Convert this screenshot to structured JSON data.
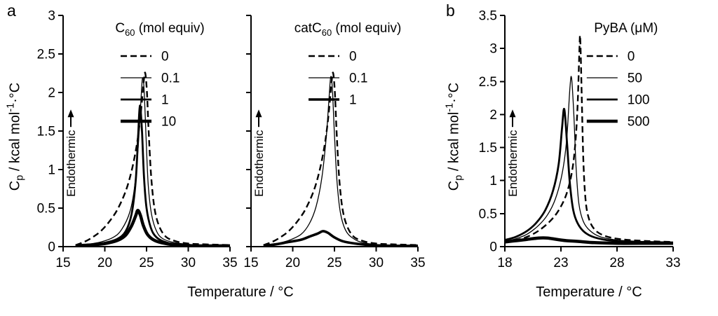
{
  "panels": {
    "a": {
      "label": "a",
      "xlabel": "Temperature / °C"
    },
    "b": {
      "label": "b",
      "xlabel": "Temperature / °C"
    }
  },
  "ylabel": {
    "pre": "C",
    "sub": "p",
    "mid": " / kcal mol",
    "sup": "-1",
    "post": "·°C",
    "plain": "Cp / kcal mol⁻¹·°C"
  },
  "annotation": {
    "text": "Endothermic",
    "arrow": "up"
  },
  "colors": {
    "ink": "#000000",
    "background": "#ffffff"
  },
  "chart_data": [
    {
      "type": "line",
      "panel": "a",
      "title": "C₆₀ (mol equiv)",
      "title_segments": [
        {
          "t": "C"
        },
        {
          "t": "60",
          "sub": true
        },
        {
          "t": " (mol equiv)"
        }
      ],
      "xlabel": "Temperature / °C",
      "ylabel": "Cp / kcal mol⁻¹·°C",
      "xlim": [
        15,
        35
      ],
      "ylim": [
        0,
        3
      ],
      "xticks": [
        15,
        20,
        25,
        30,
        35
      ],
      "xtick_labels": [
        "15",
        "20",
        "25",
        "30",
        "35"
      ],
      "yticks": [
        0,
        0.5,
        1,
        1.5,
        2,
        2.5,
        3
      ],
      "ytick_labels": [
        "0",
        "0.5",
        "1",
        "1.5",
        "2",
        "2.5",
        "3"
      ],
      "grid": false,
      "legend_pos": "top-center",
      "legend_frac": 0.58,
      "annotation": "Endothermic",
      "series": [
        {
          "name": "0",
          "dash": true,
          "width": 2.4,
          "points": [
            [
              16.5,
              0.02
            ],
            [
              17.5,
              0.06
            ],
            [
              18.5,
              0.12
            ],
            [
              19.5,
              0.2
            ],
            [
              20.5,
              0.32
            ],
            [
              21.5,
              0.48
            ],
            [
              22.5,
              0.72
            ],
            [
              23.2,
              0.98
            ],
            [
              23.8,
              1.3
            ],
            [
              24.2,
              1.62
            ],
            [
              24.5,
              1.95
            ],
            [
              24.7,
              2.18
            ],
            [
              24.85,
              2.25
            ],
            [
              25.05,
              2.0
            ],
            [
              25.25,
              1.5
            ],
            [
              25.55,
              0.92
            ],
            [
              25.95,
              0.5
            ],
            [
              26.5,
              0.27
            ],
            [
              27.3,
              0.13
            ],
            [
              28.5,
              0.07
            ],
            [
              30,
              0.04
            ],
            [
              32,
              0.03
            ],
            [
              35,
              0.02
            ]
          ]
        },
        {
          "name": "0.1",
          "dash": false,
          "width": 1.3,
          "points": [
            [
              16.5,
              0.01
            ],
            [
              18,
              0.03
            ],
            [
              19.5,
              0.06
            ],
            [
              21,
              0.12
            ],
            [
              22,
              0.22
            ],
            [
              23,
              0.45
            ],
            [
              23.6,
              0.8
            ],
            [
              24,
              1.3
            ],
            [
              24.3,
              1.85
            ],
            [
              24.5,
              2.18
            ],
            [
              24.7,
              2.05
            ],
            [
              24.95,
              1.4
            ],
            [
              25.2,
              0.8
            ],
            [
              25.6,
              0.42
            ],
            [
              26.2,
              0.2
            ],
            [
              27,
              0.1
            ],
            [
              28.5,
              0.05
            ],
            [
              31,
              0.02
            ],
            [
              35,
              0.01
            ]
          ]
        },
        {
          "name": "1",
          "dash": false,
          "width": 2.8,
          "points": [
            [
              16.5,
              0.01
            ],
            [
              18,
              0.02
            ],
            [
              20,
              0.05
            ],
            [
              21.5,
              0.1
            ],
            [
              22.5,
              0.2
            ],
            [
              23.2,
              0.42
            ],
            [
              23.7,
              0.85
            ],
            [
              24,
              1.45
            ],
            [
              24.2,
              1.83
            ],
            [
              24.45,
              1.5
            ],
            [
              24.7,
              0.9
            ],
            [
              25,
              0.5
            ],
            [
              25.5,
              0.25
            ],
            [
              26.2,
              0.12
            ],
            [
              27.5,
              0.05
            ],
            [
              29,
              0.03
            ],
            [
              32,
              0.01
            ],
            [
              35,
              0.01
            ]
          ]
        },
        {
          "name": "10",
          "dash": false,
          "width": 4.5,
          "points": [
            [
              16.5,
              0.01
            ],
            [
              18,
              0.02
            ],
            [
              20,
              0.04
            ],
            [
              21.5,
              0.08
            ],
            [
              22.5,
              0.15
            ],
            [
              23.2,
              0.27
            ],
            [
              23.7,
              0.4
            ],
            [
              23.95,
              0.47
            ],
            [
              24.25,
              0.41
            ],
            [
              24.6,
              0.28
            ],
            [
              25.1,
              0.16
            ],
            [
              25.8,
              0.09
            ],
            [
              26.8,
              0.05
            ],
            [
              28.5,
              0.02
            ],
            [
              31,
              0.01
            ],
            [
              35,
              0.01
            ]
          ]
        }
      ]
    },
    {
      "type": "line",
      "panel": "a",
      "title": "catC₆₀ (mol equiv)",
      "title_segments": [
        {
          "t": "catC"
        },
        {
          "t": "60",
          "sub": true
        },
        {
          "t": " (mol equiv)"
        }
      ],
      "xlabel": "Temperature / °C",
      "ylabel": "Cp / kcal mol⁻¹·°C",
      "xlim": [
        15,
        35
      ],
      "ylim": [
        0,
        3
      ],
      "xticks": [
        15,
        20,
        25,
        30,
        35
      ],
      "xtick_labels": [
        "15",
        "20",
        "25",
        "30",
        "35"
      ],
      "yticks": [
        0,
        0.5,
        1,
        1.5,
        2,
        2.5,
        3
      ],
      "ytick_labels": [
        "0",
        "0.5",
        "1",
        "1.5",
        "2",
        "2.5",
        "3"
      ],
      "grid": false,
      "legend_pos": "top-center",
      "legend_frac": 0.58,
      "annotation": "Endothermic",
      "series": [
        {
          "name": "0",
          "dash": true,
          "width": 2.4,
          "points": [
            [
              16.5,
              0.02
            ],
            [
              17.5,
              0.06
            ],
            [
              18.5,
              0.12
            ],
            [
              19.5,
              0.2
            ],
            [
              20.5,
              0.32
            ],
            [
              21.5,
              0.48
            ],
            [
              22.5,
              0.72
            ],
            [
              23.2,
              0.98
            ],
            [
              23.8,
              1.3
            ],
            [
              24.2,
              1.62
            ],
            [
              24.5,
              1.95
            ],
            [
              24.7,
              2.18
            ],
            [
              24.85,
              2.25
            ],
            [
              25.05,
              2.0
            ],
            [
              25.25,
              1.5
            ],
            [
              25.55,
              0.92
            ],
            [
              25.95,
              0.5
            ],
            [
              26.5,
              0.27
            ],
            [
              27.3,
              0.13
            ],
            [
              28.5,
              0.07
            ],
            [
              30,
              0.04
            ],
            [
              32,
              0.03
            ],
            [
              35,
              0.02
            ]
          ]
        },
        {
          "name": "0.1",
          "dash": false,
          "width": 1.3,
          "points": [
            [
              16.5,
              0.02
            ],
            [
              18,
              0.04
            ],
            [
              19.5,
              0.08
            ],
            [
              21,
              0.16
            ],
            [
              22,
              0.3
            ],
            [
              22.8,
              0.52
            ],
            [
              23.5,
              0.9
            ],
            [
              24,
              1.4
            ],
            [
              24.3,
              1.85
            ],
            [
              24.55,
              2.2
            ],
            [
              24.75,
              2.05
            ],
            [
              25,
              1.45
            ],
            [
              25.3,
              0.85
            ],
            [
              25.7,
              0.45
            ],
            [
              26.3,
              0.22
            ],
            [
              27.2,
              0.11
            ],
            [
              28.5,
              0.05
            ],
            [
              31,
              0.02
            ],
            [
              35,
              0.02
            ]
          ]
        },
        {
          "name": "1",
          "dash": false,
          "width": 3.6,
          "points": [
            [
              16.5,
              0.01
            ],
            [
              18,
              0.03
            ],
            [
              19.5,
              0.06
            ],
            [
              21,
              0.09
            ],
            [
              22,
              0.13
            ],
            [
              23,
              0.17
            ],
            [
              23.6,
              0.2
            ],
            [
              24.2,
              0.18
            ],
            [
              25,
              0.12
            ],
            [
              26,
              0.07
            ],
            [
              27.5,
              0.04
            ],
            [
              29.5,
              0.02
            ],
            [
              32,
              0.01
            ],
            [
              35,
              0.01
            ]
          ]
        }
      ]
    },
    {
      "type": "line",
      "panel": "b",
      "title": "PyBA (μM)",
      "title_segments": [
        {
          "t": "PyBA (μM)"
        }
      ],
      "xlabel": "Temperature / °C",
      "ylabel": "Cp / kcal mol⁻¹·°C",
      "xlim": [
        18,
        33
      ],
      "ylim": [
        0,
        3.5
      ],
      "xticks": [
        18,
        23,
        28,
        33
      ],
      "xtick_labels": [
        "18",
        "23",
        "28",
        "33"
      ],
      "yticks": [
        0,
        0.5,
        1,
        1.5,
        2,
        2.5,
        3,
        3.5
      ],
      "ytick_labels": [
        "0",
        "0.5",
        "1",
        "1.5",
        "2",
        "2.5",
        "3",
        "3.5"
      ],
      "grid": false,
      "legend_pos": "top-right",
      "legend_frac": 0.72,
      "annotation": "Endothermic",
      "series": [
        {
          "name": "0",
          "dash": true,
          "width": 2.4,
          "points": [
            [
              18,
              0.07
            ],
            [
              19,
              0.1
            ],
            [
              20,
              0.15
            ],
            [
              21,
              0.24
            ],
            [
              22,
              0.38
            ],
            [
              22.8,
              0.55
            ],
            [
              23.5,
              0.8
            ],
            [
              24,
              1.15
            ],
            [
              24.3,
              1.6
            ],
            [
              24.5,
              2.2
            ],
            [
              24.65,
              3.0
            ],
            [
              24.72,
              3.15
            ],
            [
              24.85,
              2.3
            ],
            [
              25,
              1.3
            ],
            [
              25.2,
              0.7
            ],
            [
              25.5,
              0.42
            ],
            [
              26,
              0.26
            ],
            [
              26.8,
              0.17
            ],
            [
              28,
              0.12
            ],
            [
              30,
              0.09
            ],
            [
              33,
              0.07
            ]
          ]
        },
        {
          "name": "50",
          "dash": false,
          "width": 1.3,
          "points": [
            [
              18,
              0.08
            ],
            [
              19,
              0.12
            ],
            [
              20,
              0.19
            ],
            [
              21,
              0.32
            ],
            [
              21.8,
              0.48
            ],
            [
              22.5,
              0.72
            ],
            [
              23.1,
              1.1
            ],
            [
              23.5,
              1.6
            ],
            [
              23.8,
              2.4
            ],
            [
              23.95,
              2.55
            ],
            [
              24.15,
              2.0
            ],
            [
              24.35,
              1.2
            ],
            [
              24.6,
              0.65
            ],
            [
              25,
              0.38
            ],
            [
              25.6,
              0.24
            ],
            [
              26.5,
              0.15
            ],
            [
              28,
              0.1
            ],
            [
              30,
              0.08
            ],
            [
              33,
              0.07
            ]
          ]
        },
        {
          "name": "100",
          "dash": false,
          "width": 2.8,
          "points": [
            [
              18,
              0.1
            ],
            [
              19,
              0.15
            ],
            [
              20,
              0.24
            ],
            [
              20.8,
              0.36
            ],
            [
              21.6,
              0.55
            ],
            [
              22.3,
              0.85
            ],
            [
              22.8,
              1.25
            ],
            [
              23.1,
              1.8
            ],
            [
              23.3,
              2.08
            ],
            [
              23.55,
              1.55
            ],
            [
              23.8,
              0.95
            ],
            [
              24.1,
              0.55
            ],
            [
              24.5,
              0.35
            ],
            [
              25.1,
              0.22
            ],
            [
              26,
              0.14
            ],
            [
              27.5,
              0.09
            ],
            [
              30,
              0.07
            ],
            [
              33,
              0.06
            ]
          ]
        },
        {
          "name": "500",
          "dash": false,
          "width": 4.5,
          "points": [
            [
              18,
              0.07
            ],
            [
              19,
              0.09
            ],
            [
              20,
              0.11
            ],
            [
              21,
              0.13
            ],
            [
              21.8,
              0.13
            ],
            [
              22.6,
              0.11
            ],
            [
              23.5,
              0.09
            ],
            [
              24.5,
              0.08
            ],
            [
              26,
              0.06
            ],
            [
              28,
              0.05
            ],
            [
              30,
              0.05
            ],
            [
              33,
              0.05
            ]
          ]
        }
      ]
    }
  ]
}
